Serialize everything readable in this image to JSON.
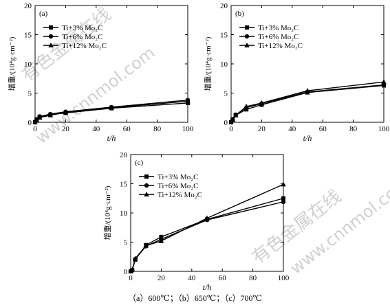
{
  "figure_caption": "（a）600℃；（b）650℃；（c）700℃",
  "watermark": {
    "text_a": "有色金属在线",
    "text_b": "www.cnnmol.com"
  },
  "chart_data": [
    {
      "type": "line",
      "panel_label": "(a)",
      "xlabel": "t/h",
      "ylabel": "增重/(10⁴g·cm⁻²)",
      "xlim": [
        0,
        100
      ],
      "ylim": [
        0,
        20
      ],
      "xticks": [
        0,
        20,
        40,
        60,
        80,
        100
      ],
      "yticks": [
        0,
        5,
        10,
        15,
        20
      ],
      "legend_position": "top-left",
      "series": [
        {
          "name": "Ti+3% Mo₂C",
          "marker": "square",
          "x": [
            0,
            1,
            3,
            10,
            20,
            50,
            100
          ],
          "y": [
            0,
            0.5,
            0.9,
            1.3,
            1.6,
            2.4,
            3.3
          ]
        },
        {
          "name": "Ti+6% Mo₂C",
          "marker": "circle",
          "x": [
            0,
            1,
            3,
            10,
            20,
            50,
            100
          ],
          "y": [
            0,
            0.5,
            1.0,
            1.4,
            1.8,
            2.6,
            3.8
          ]
        },
        {
          "name": "Ti+12% Mo₂C",
          "marker": "triangle",
          "x": [
            0,
            1,
            3,
            10,
            20,
            50,
            100
          ],
          "y": [
            0,
            0.4,
            0.8,
            1.2,
            1.7,
            2.5,
            3.6
          ]
        }
      ]
    },
    {
      "type": "line",
      "panel_label": "(b)",
      "xlabel": "t/h",
      "ylabel": "增重/(10⁴g·cm⁻²)",
      "xlim": [
        0,
        100
      ],
      "ylim": [
        0,
        20
      ],
      "xticks": [
        0,
        20,
        40,
        60,
        80,
        100
      ],
      "yticks": [
        0,
        5,
        10,
        15,
        20
      ],
      "legend_position": "top-right",
      "series": [
        {
          "name": "Ti+3% Mo₂C",
          "marker": "square",
          "x": [
            0,
            1,
            3,
            10,
            20,
            50,
            100
          ],
          "y": [
            0,
            0.4,
            1.2,
            2.2,
            3.0,
            5.1,
            6.3
          ]
        },
        {
          "name": "Ti+6% Mo₂C",
          "marker": "circle",
          "x": [
            0,
            1,
            3,
            10,
            20,
            50,
            100
          ],
          "y": [
            0,
            0.5,
            1.3,
            2.5,
            3.2,
            5.2,
            6.4
          ]
        },
        {
          "name": "Ti+12% Mo₂C",
          "marker": "triangle",
          "x": [
            0,
            1,
            3,
            10,
            20,
            50,
            100
          ],
          "y": [
            0,
            0.5,
            1.2,
            2.7,
            3.3,
            5.4,
            6.9
          ]
        }
      ]
    },
    {
      "type": "line",
      "panel_label": "(c)",
      "xlabel": "t/h",
      "ylabel": "增重/(10⁴g·cm⁻²)",
      "xlim": [
        0,
        100
      ],
      "ylim": [
        0,
        20
      ],
      "xticks": [
        0,
        20,
        40,
        60,
        80,
        100
      ],
      "yticks": [
        0,
        5,
        10,
        15,
        20
      ],
      "legend_position": "top-left",
      "series": [
        {
          "name": "Ti+3% Mo₂C",
          "marker": "square",
          "x": [
            0,
            1,
            3,
            10,
            20,
            50,
            100
          ],
          "y": [
            0,
            0.2,
            2.0,
            4.5,
            5.9,
            8.9,
            12.5
          ]
        },
        {
          "name": "Ti+6% Mo₂C",
          "marker": "circle",
          "x": [
            0,
            1,
            3,
            10,
            20,
            50,
            100
          ],
          "y": [
            0,
            0.2,
            2.1,
            4.3,
            5.5,
            8.8,
            11.9
          ]
        },
        {
          "name": "Ti+12% Mo₂C",
          "marker": "triangle",
          "x": [
            0,
            1,
            3,
            10,
            20,
            50,
            100
          ],
          "y": [
            0,
            0.3,
            2.2,
            4.4,
            5.2,
            9.1,
            14.9
          ]
        }
      ]
    }
  ]
}
